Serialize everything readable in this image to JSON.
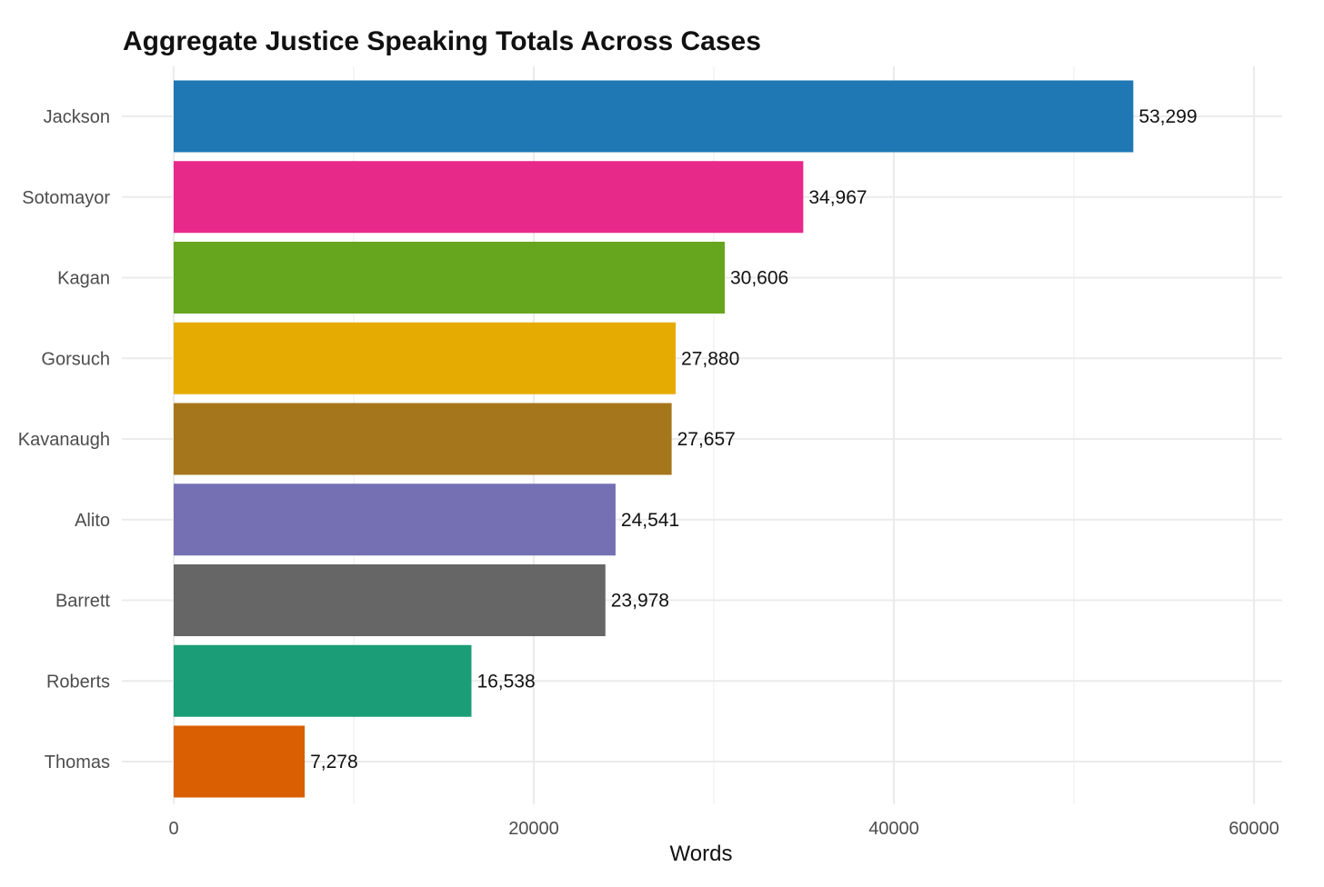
{
  "chart_data": {
    "type": "bar",
    "orientation": "horizontal",
    "title": "Aggregate Justice Speaking Totals Across Cases",
    "xlabel": "Words",
    "ylabel": "",
    "xlim": [
      0,
      60000
    ],
    "x_ticks": [
      0,
      20000,
      40000,
      60000
    ],
    "x_tick_labels": [
      "0",
      "20000",
      "40000",
      "60000"
    ],
    "grid": true,
    "legend": "none",
    "categories": [
      "Jackson",
      "Sotomayor",
      "Kagan",
      "Gorsuch",
      "Kavanaugh",
      "Alito",
      "Barrett",
      "Roberts",
      "Thomas"
    ],
    "values": [
      53299,
      34967,
      30606,
      27880,
      27657,
      24541,
      23978,
      16538,
      7278
    ],
    "value_labels": [
      "53,299",
      "34,967",
      "30,606",
      "27,880",
      "27,657",
      "24,541",
      "23,978",
      "16,538",
      "7,278"
    ],
    "colors": [
      "#1F78B4",
      "#E7298A",
      "#66A61E",
      "#E6AB02",
      "#A6761D",
      "#7570B3",
      "#666666",
      "#1B9E77",
      "#D95F02"
    ]
  }
}
